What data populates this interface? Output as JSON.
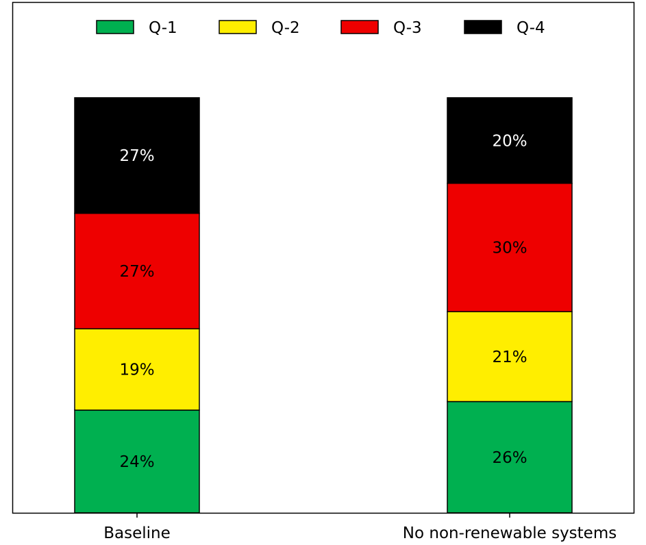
{
  "chart_data": {
    "type": "bar",
    "stacked": true,
    "percent": true,
    "categories": [
      "Baseline",
      "No non-renewable systems"
    ],
    "series": [
      {
        "name": "Q-1",
        "color": "#00b050",
        "label_color": "#000000",
        "values": [
          24,
          26
        ],
        "labels": [
          "24%",
          "26%"
        ]
      },
      {
        "name": "Q-2",
        "color": "#ffee00",
        "label_color": "#000000",
        "values": [
          19,
          21
        ],
        "labels": [
          "19%",
          "21%"
        ]
      },
      {
        "name": "Q-3",
        "color": "#ee0000",
        "label_color": "#000000",
        "values": [
          27,
          30
        ],
        "labels": [
          "27%",
          "30%"
        ]
      },
      {
        "name": "Q-4",
        "color": "#000000",
        "label_color": "#ffffff",
        "values": [
          27,
          20
        ],
        "labels": [
          "27%",
          "20%"
        ]
      }
    ],
    "legend": "top-center",
    "ylim": [
      0,
      100
    ],
    "title": "",
    "xlabel": "",
    "ylabel": "",
    "grid": false
  }
}
